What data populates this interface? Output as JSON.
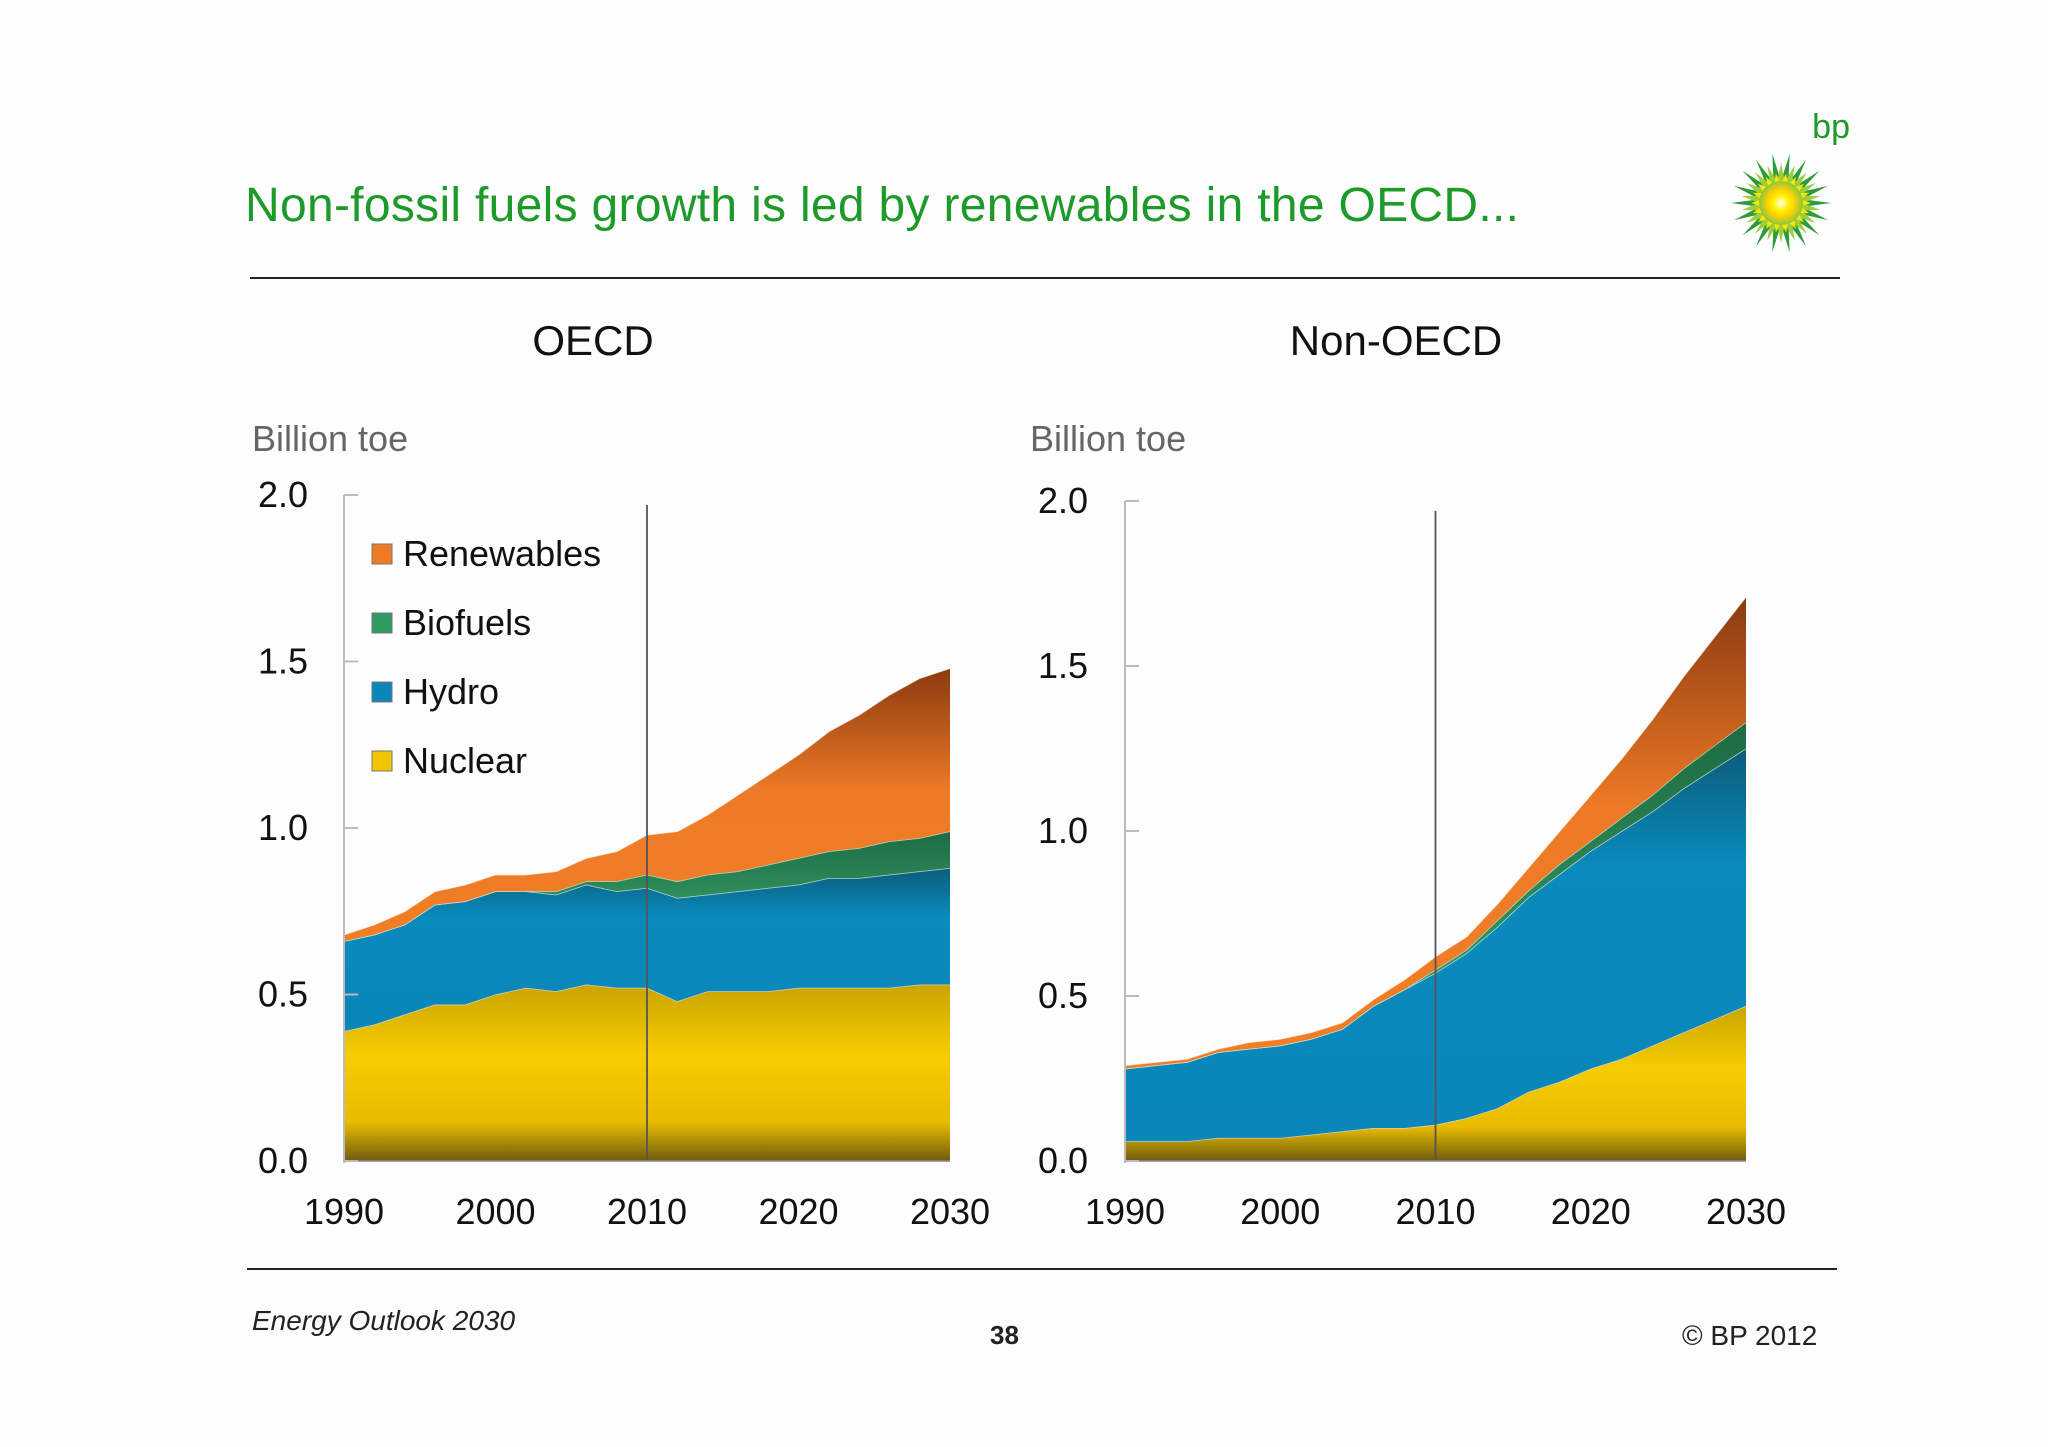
{
  "slide": {
    "title": "Non-fossil fuels growth is led by renewables in the OECD...",
    "logo_text": "bp",
    "footer_left": "Energy Outlook 2030",
    "page_number": "38",
    "footer_right": "© BP 2012"
  },
  "colors": {
    "title": "#1d9a2a",
    "Nuclear": "#f2c400",
    "Hydro": "#0a86b8",
    "Biofuels": "#2f9a62",
    "Renewables": "#ee7a26"
  },
  "chart_data": [
    {
      "type": "area",
      "stacked": true,
      "title": "OECD",
      "ylabel": "Billion toe",
      "xlim": [
        1990,
        2030
      ],
      "ylim": [
        0,
        2.0
      ],
      "xticks": [
        1990,
        2000,
        2010,
        2020,
        2030
      ],
      "yticks": [
        "0.0",
        "0.5",
        "1.0",
        "1.5",
        "2.0"
      ],
      "vline": 2010,
      "legend": {
        "placement": "top-left",
        "entries": [
          "Renewables",
          "Biofuels",
          "Hydro",
          "Nuclear"
        ]
      },
      "x": [
        1990,
        1992,
        1994,
        1996,
        1998,
        2000,
        2002,
        2004,
        2006,
        2008,
        2010,
        2012,
        2014,
        2016,
        2018,
        2020,
        2022,
        2024,
        2026,
        2028,
        2030
      ],
      "series": [
        {
          "name": "Nuclear",
          "values": [
            0.39,
            0.41,
            0.44,
            0.47,
            0.47,
            0.5,
            0.52,
            0.51,
            0.53,
            0.52,
            0.52,
            0.48,
            0.51,
            0.51,
            0.51,
            0.52,
            0.52,
            0.52,
            0.52,
            0.53,
            0.53
          ]
        },
        {
          "name": "Hydro",
          "values": [
            0.27,
            0.27,
            0.27,
            0.3,
            0.31,
            0.31,
            0.29,
            0.29,
            0.3,
            0.29,
            0.3,
            0.31,
            0.29,
            0.3,
            0.31,
            0.31,
            0.33,
            0.33,
            0.34,
            0.34,
            0.35
          ]
        },
        {
          "name": "Biofuels",
          "values": [
            0.0,
            0.0,
            0.0,
            0.0,
            0.0,
            0.0,
            0.0,
            0.01,
            0.01,
            0.03,
            0.04,
            0.05,
            0.06,
            0.06,
            0.07,
            0.08,
            0.08,
            0.09,
            0.1,
            0.1,
            0.11
          ]
        },
        {
          "name": "Renewables",
          "values": [
            0.02,
            0.03,
            0.04,
            0.04,
            0.05,
            0.05,
            0.05,
            0.06,
            0.07,
            0.09,
            0.12,
            0.15,
            0.18,
            0.23,
            0.27,
            0.31,
            0.36,
            0.4,
            0.44,
            0.48,
            0.49
          ]
        }
      ]
    },
    {
      "type": "area",
      "stacked": true,
      "title": "Non-OECD",
      "ylabel": "Billion toe",
      "xlim": [
        1990,
        2030
      ],
      "ylim": [
        0,
        2.0
      ],
      "xticks": [
        1990,
        2000,
        2010,
        2020,
        2030
      ],
      "yticks": [
        "0.0",
        "0.5",
        "1.0",
        "1.5",
        "2.0"
      ],
      "vline": 2010,
      "x": [
        1990,
        1992,
        1994,
        1996,
        1998,
        2000,
        2002,
        2004,
        2006,
        2008,
        2010,
        2012,
        2014,
        2016,
        2018,
        2020,
        2022,
        2024,
        2026,
        2028,
        2030
      ],
      "series": [
        {
          "name": "Nuclear",
          "values": [
            0.06,
            0.06,
            0.06,
            0.07,
            0.07,
            0.07,
            0.08,
            0.09,
            0.1,
            0.1,
            0.11,
            0.13,
            0.16,
            0.21,
            0.24,
            0.28,
            0.31,
            0.35,
            0.39,
            0.43,
            0.47
          ]
        },
        {
          "name": "Hydro",
          "values": [
            0.22,
            0.23,
            0.24,
            0.26,
            0.27,
            0.28,
            0.29,
            0.31,
            0.37,
            0.42,
            0.46,
            0.5,
            0.55,
            0.59,
            0.63,
            0.66,
            0.69,
            0.71,
            0.74,
            0.76,
            0.78
          ]
        },
        {
          "name": "Biofuels",
          "values": [
            0.0,
            0.0,
            0.0,
            0.0,
            0.0,
            0.0,
            0.0,
            0.0,
            0.0,
            0.0,
            0.01,
            0.01,
            0.02,
            0.02,
            0.03,
            0.03,
            0.04,
            0.05,
            0.06,
            0.07,
            0.08
          ]
        },
        {
          "name": "Renewables",
          "values": [
            0.01,
            0.01,
            0.01,
            0.01,
            0.02,
            0.02,
            0.02,
            0.02,
            0.02,
            0.03,
            0.04,
            0.04,
            0.05,
            0.07,
            0.1,
            0.14,
            0.18,
            0.23,
            0.28,
            0.33,
            0.38
          ]
        }
      ]
    }
  ]
}
